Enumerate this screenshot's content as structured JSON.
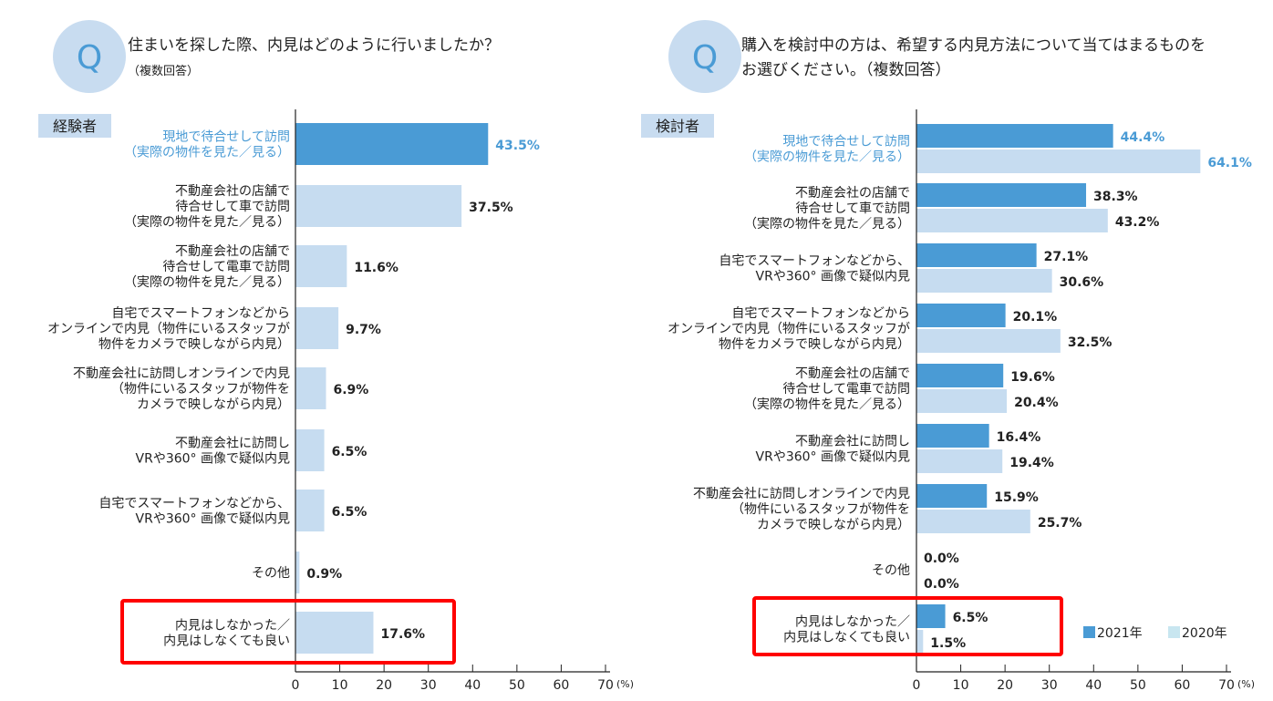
{
  "colors": {
    "dark_bar": "#4a9bd5",
    "light_bar": "#c6dcf0",
    "legend_2020": "#c8e6f0",
    "highlight_text": "#4a9bd5",
    "q_circle": "#c8dcf0",
    "red_box": "#ff0000"
  },
  "chart_data": [
    {
      "type": "bar",
      "orientation": "horizontal",
      "q_mark": "Q",
      "title_lines": [
        "住まいを探した際、内見はどのように行いましたか？",
        "（複数回答）"
      ],
      "group_label": "経験者",
      "categories": [
        [
          "現地で待合せして訪問",
          "（実際の物件を見た／見る）"
        ],
        [
          "不動産会社の店舗で",
          "待合せして車で訪問",
          "（実際の物件を見た／見る）"
        ],
        [
          "不動産会社の店舗で",
          "待合せして電車で訪問",
          "（実際の物件を見た／見る）"
        ],
        [
          "自宅でスマートフォンなどから",
          "オンラインで内見（物件にいるスタッフが",
          "物件をカメラで映しながら内見）"
        ],
        [
          "不動産会社に訪問しオンラインで内見",
          "（物件にいるスタッフが物件を",
          "カメラで映しながら内見）"
        ],
        [
          "不動産会社に訪問し",
          "VRや360° 画像で疑似内見"
        ],
        [
          "自宅でスマートフォンなどから、",
          "VRや360° 画像で疑似内見"
        ],
        [
          "その他"
        ],
        [
          "内見はしなかった／",
          "内見はしなくても良い"
        ]
      ],
      "series": [
        {
          "values": [
            43.5,
            37.5,
            11.6,
            9.7,
            6.9,
            6.5,
            6.5,
            0.9,
            17.6
          ]
        }
      ],
      "value_labels": [
        "43.5%",
        "37.5%",
        "11.6%",
        "9.7%",
        "6.9%",
        "6.5%",
        "6.5%",
        "0.9%",
        "17.6%"
      ],
      "highlighted_category_index": 0,
      "boxed_category_index": 8,
      "xlim": [
        0,
        70
      ],
      "xticks": [
        "0",
        "10",
        "20",
        "30",
        "40",
        "50",
        "60",
        "70"
      ],
      "xunit": "(%)",
      "grid": false
    },
    {
      "type": "bar",
      "orientation": "horizontal",
      "q_mark": "Q",
      "title_lines": [
        "購入を検討中の方は、希望する内見方法について当てはまるものを",
        "お選びください。（複数回答）"
      ],
      "group_label": "検討者",
      "categories": [
        [
          "現地で待合せして訪問",
          "（実際の物件を見た／見る）"
        ],
        [
          "不動産会社の店舗で",
          "待合せして車で訪問",
          "（実際の物件を見た／見る）"
        ],
        [
          "自宅でスマートフォンなどから、",
          "VRや360° 画像で疑似内見"
        ],
        [
          "自宅でスマートフォンなどから",
          "オンラインで内見（物件にいるスタッフが",
          "物件をカメラで映しながら内見）"
        ],
        [
          "不動産会社の店舗で",
          "待合せして電車で訪問",
          "（実際の物件を見た／見る）"
        ],
        [
          "不動産会社に訪問し",
          "VRや360° 画像で疑似内見"
        ],
        [
          "不動産会社に訪問しオンラインで内見",
          "（物件にいるスタッフが物件を",
          "カメラで映しながら内見）"
        ],
        [
          "その他"
        ],
        [
          "内見はしなかった／",
          "内見はしなくても良い"
        ]
      ],
      "series": [
        {
          "name": "2021年",
          "values": [
            44.4,
            38.3,
            27.1,
            20.1,
            19.6,
            16.4,
            15.9,
            0.0,
            6.5
          ],
          "value_labels": [
            "44.4%",
            "38.3%",
            "27.1%",
            "20.1%",
            "19.6%",
            "16.4%",
            "15.9%",
            "0.0%",
            "6.5%"
          ]
        },
        {
          "name": "2020年",
          "values": [
            64.1,
            43.2,
            30.6,
            32.5,
            20.4,
            19.4,
            25.7,
            0.0,
            1.5
          ],
          "value_labels": [
            "64.1%",
            "43.2%",
            "30.6%",
            "32.5%",
            "20.4%",
            "19.4%",
            "25.7%",
            "0.0%",
            "1.5%"
          ]
        }
      ],
      "highlighted_category_index": 0,
      "boxed_category_index": 8,
      "legend_position": "bottom-right",
      "xlim": [
        0,
        70
      ],
      "xticks": [
        "0",
        "10",
        "20",
        "30",
        "40",
        "50",
        "60",
        "70"
      ],
      "xunit": "(%)",
      "grid": false
    }
  ]
}
